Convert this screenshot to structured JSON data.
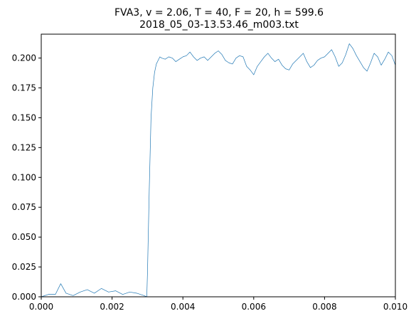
{
  "chart_data": {
    "type": "line",
    "title": {
      "line1": "FVA3, v = 2.06, T = 40, F = 20, h = 599.6",
      "line2": "2018_05_03-13.53.46_m003.txt"
    },
    "xlabel": "",
    "ylabel": "",
    "xlim": [
      0,
      0.01
    ],
    "ylim": [
      0,
      0.22
    ],
    "x_ticks": [
      {
        "value": 0.0,
        "label": "0.000"
      },
      {
        "value": 0.002,
        "label": "0.002"
      },
      {
        "value": 0.004,
        "label": "0.004"
      },
      {
        "value": 0.006,
        "label": "0.006"
      },
      {
        "value": 0.008,
        "label": "0.008"
      },
      {
        "value": 0.01,
        "label": "0.010"
      }
    ],
    "y_ticks": [
      {
        "value": 0.0,
        "label": "0.000"
      },
      {
        "value": 0.025,
        "label": "0.025"
      },
      {
        "value": 0.05,
        "label": "0.050"
      },
      {
        "value": 0.075,
        "label": "0.075"
      },
      {
        "value": 0.1,
        "label": "0.100"
      },
      {
        "value": 0.125,
        "label": "0.125"
      },
      {
        "value": 0.15,
        "label": "0.150"
      },
      {
        "value": 0.175,
        "label": "0.175"
      },
      {
        "value": 0.2,
        "label": "0.200"
      }
    ],
    "grid": false,
    "legend": "none",
    "series": [
      {
        "color": "#1f77b4",
        "x": [
          0.0,
          0.0002,
          0.0004,
          0.00055,
          0.0007,
          0.0009,
          0.0011,
          0.0013,
          0.0015,
          0.0017,
          0.0019,
          0.0021,
          0.0023,
          0.0025,
          0.0027,
          0.0029,
          0.00298,
          0.003,
          0.00305,
          0.0031,
          0.00315,
          0.0032,
          0.00325,
          0.0033,
          0.00335,
          0.0034,
          0.0035,
          0.0036,
          0.0037,
          0.0038,
          0.0039,
          0.004,
          0.0041,
          0.0042,
          0.0043,
          0.0044,
          0.0045,
          0.0046,
          0.0047,
          0.0048,
          0.0049,
          0.005,
          0.0051,
          0.0052,
          0.0053,
          0.0054,
          0.0055,
          0.0056,
          0.0057,
          0.0058,
          0.0059,
          0.006,
          0.0061,
          0.0062,
          0.0063,
          0.0064,
          0.0065,
          0.0066,
          0.0067,
          0.0068,
          0.0069,
          0.007,
          0.0071,
          0.0072,
          0.0073,
          0.0074,
          0.0075,
          0.0076,
          0.0077,
          0.0078,
          0.0079,
          0.008,
          0.0081,
          0.0082,
          0.0083,
          0.0084,
          0.0085,
          0.0086,
          0.0087,
          0.0088,
          0.0089,
          0.009,
          0.0091,
          0.0092,
          0.0093,
          0.0094,
          0.0095,
          0.0096,
          0.0097,
          0.0098,
          0.0099,
          0.01
        ],
        "y": [
          0.0,
          0.002,
          0.002,
          0.011,
          0.003,
          0.001,
          0.004,
          0.006,
          0.003,
          0.007,
          0.004,
          0.005,
          0.002,
          0.004,
          0.003,
          0.001,
          0.0,
          0.02,
          0.09,
          0.15,
          0.175,
          0.188,
          0.195,
          0.198,
          0.201,
          0.2,
          0.199,
          0.201,
          0.2,
          0.197,
          0.199,
          0.201,
          0.202,
          0.205,
          0.201,
          0.198,
          0.2,
          0.201,
          0.198,
          0.201,
          0.204,
          0.206,
          0.203,
          0.198,
          0.196,
          0.195,
          0.2,
          0.202,
          0.201,
          0.193,
          0.19,
          0.186,
          0.193,
          0.197,
          0.201,
          0.204,
          0.2,
          0.197,
          0.199,
          0.194,
          0.191,
          0.19,
          0.195,
          0.198,
          0.201,
          0.204,
          0.197,
          0.192,
          0.194,
          0.198,
          0.2,
          0.201,
          0.204,
          0.207,
          0.201,
          0.193,
          0.196,
          0.203,
          0.212,
          0.208,
          0.202,
          0.197,
          0.192,
          0.189,
          0.196,
          0.204,
          0.201,
          0.194,
          0.199,
          0.205,
          0.202,
          0.194
        ]
      }
    ]
  }
}
